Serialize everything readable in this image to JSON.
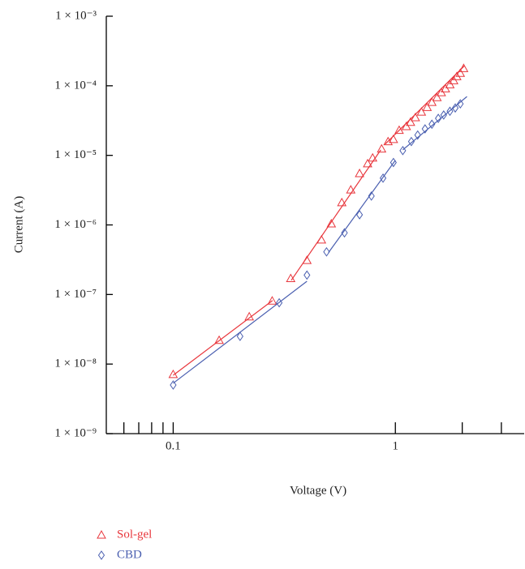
{
  "chart_data": {
    "type": "scatter",
    "x_label": "Voltage (V)",
    "y_label": "Current (A)",
    "xscale": "log",
    "yscale": "log",
    "xlim": [
      0.05,
      3.8
    ],
    "ylim": [
      1e-09,
      0.001
    ],
    "xticks": [
      0.1,
      1
    ],
    "x_minor_ticks": [
      0.06,
      0.07,
      0.08,
      0.09,
      2,
      3
    ],
    "yticks": [
      {
        "value": 1e-09,
        "label": "1 × 10⁻⁹"
      },
      {
        "value": 1e-08,
        "label": "1 × 10⁻⁸"
      },
      {
        "value": 1e-07,
        "label": "1 × 10⁻⁷"
      },
      {
        "value": 1e-06,
        "label": "1 × 10⁻⁶"
      },
      {
        "value": 1e-05,
        "label": "1 × 10⁻⁵"
      },
      {
        "value": 0.0001,
        "label": "1 × 10⁻⁴"
      },
      {
        "value": 0.001,
        "label": "1 × 10⁻³"
      }
    ],
    "legend": "bottom-left-outside",
    "series": [
      {
        "name": "Sol-gel",
        "color": "#e8363c",
        "marker": "triangle",
        "x": [
          0.1,
          0.161,
          0.22,
          0.279,
          0.338,
          0.4,
          0.465,
          0.515,
          0.574,
          0.63,
          0.69,
          0.75,
          0.79,
          0.867,
          0.927,
          0.98,
          1.04,
          1.12,
          1.17,
          1.23,
          1.31,
          1.39,
          1.46,
          1.54,
          1.61,
          1.68,
          1.76,
          1.83,
          1.89,
          1.96,
          2.03
        ],
        "values": [
          7.1e-09,
          2.2e-08,
          4.8e-08,
          8.1e-08,
          1.7e-07,
          3.1e-07,
          6.1e-07,
          1.04e-06,
          2.1e-06,
          3.2e-06,
          5.5e-06,
          7.6e-06,
          9.2e-06,
          1.24e-05,
          1.58e-05,
          1.7e-05,
          2.3e-05,
          2.6e-05,
          3e-05,
          3.5e-05,
          4.2e-05,
          4.9e-05,
          5.8e-05,
          6.8e-05,
          8e-05,
          9.1e-05,
          0.000104,
          0.000119,
          0.000136,
          0.000152,
          0.000178
        ],
        "fits": [
          {
            "x": [
              0.1,
              0.28
            ],
            "y": [
              6.9e-09,
              8.2e-08
            ]
          },
          {
            "x": [
              0.34,
              0.86
            ],
            "y": [
              1.6e-07,
              1.2e-05
            ]
          },
          {
            "x": [
              0.9,
              2.05
            ],
            "y": [
              1.45e-05,
              0.000195
            ]
          }
        ]
      },
      {
        "name": "CBD",
        "color": "#4a5fb0",
        "marker": "diamond",
        "x": [
          0.1,
          0.2,
          0.3,
          0.4,
          0.49,
          0.59,
          0.69,
          0.78,
          0.88,
          0.98,
          1.08,
          1.18,
          1.26,
          1.36,
          1.46,
          1.56,
          1.65,
          1.76,
          1.86,
          1.96
        ],
        "values": [
          5e-09,
          2.5e-08,
          7.6e-08,
          1.9e-07,
          4.1e-07,
          7.7e-07,
          1.4e-06,
          2.6e-06,
          4.7e-06,
          7.9e-06,
          1.17e-05,
          1.58e-05,
          1.96e-05,
          2.4e-05,
          2.8e-05,
          3.4e-05,
          3.8e-05,
          4.3e-05,
          4.8e-05,
          5.5e-05
        ],
        "fits": [
          {
            "x": [
              0.1,
              0.4
            ],
            "y": [
              5.3e-09,
              1.55e-07
            ]
          },
          {
            "x": [
              0.5,
              1.0
            ],
            "y": [
              4e-07,
              8.5e-06
            ]
          },
          {
            "x": [
              1.08,
              2.1
            ],
            "y": [
              1.2e-05,
              7e-05
            ]
          }
        ]
      }
    ]
  }
}
